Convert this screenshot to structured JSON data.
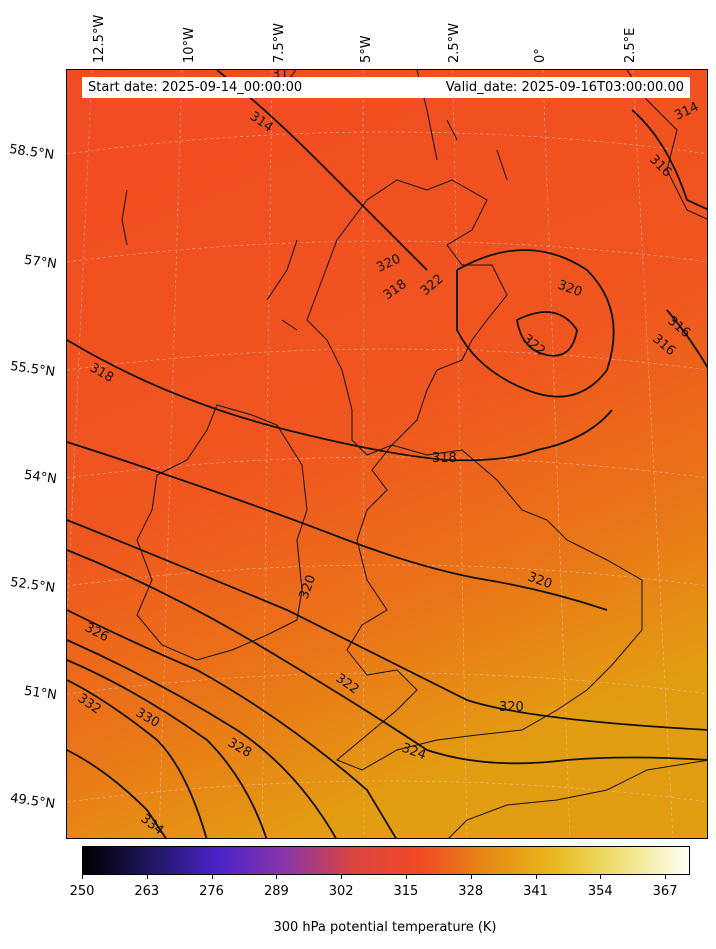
{
  "map": {
    "start_date": "Start date: 2025-09-14_00:00:00",
    "valid_date": "Valid_date: 2025-09-16T03:00:00.00",
    "lon_labels": [
      "12.5°W",
      "10°W",
      "7.5°W",
      "5°W",
      "2.5°W",
      "0°",
      "2.5°E"
    ],
    "lat_labels": [
      "58.5°N",
      "57°N",
      "55.5°N",
      "54°N",
      "52.5°N",
      "51°N",
      "49.5°N"
    ],
    "contour_labels": [
      "312",
      "314",
      "314",
      "316",
      "316",
      "316",
      "318",
      "318",
      "318",
      "320",
      "320",
      "320",
      "320",
      "320",
      "322",
      "322",
      "322",
      "324",
      "326",
      "328",
      "330",
      "332",
      "334"
    ],
    "colors": {
      "field_cool": "#f14a23",
      "field_warm": "#e5a012",
      "contour": "#111111",
      "coastline": "#111111"
    }
  },
  "colorbar": {
    "title": "300 hPa potential temperature (K)",
    "ticks": [
      "250",
      "263",
      "276",
      "289",
      "302",
      "315",
      "328",
      "341",
      "354",
      "367"
    ],
    "range": [
      250,
      372
    ],
    "colormap": [
      "#000000",
      "#1e1660",
      "#4a22c9",
      "#8a35a9",
      "#d9453f",
      "#f14a23",
      "#e68a14",
      "#e8b91e",
      "#efe27c",
      "#fffff5"
    ]
  }
}
